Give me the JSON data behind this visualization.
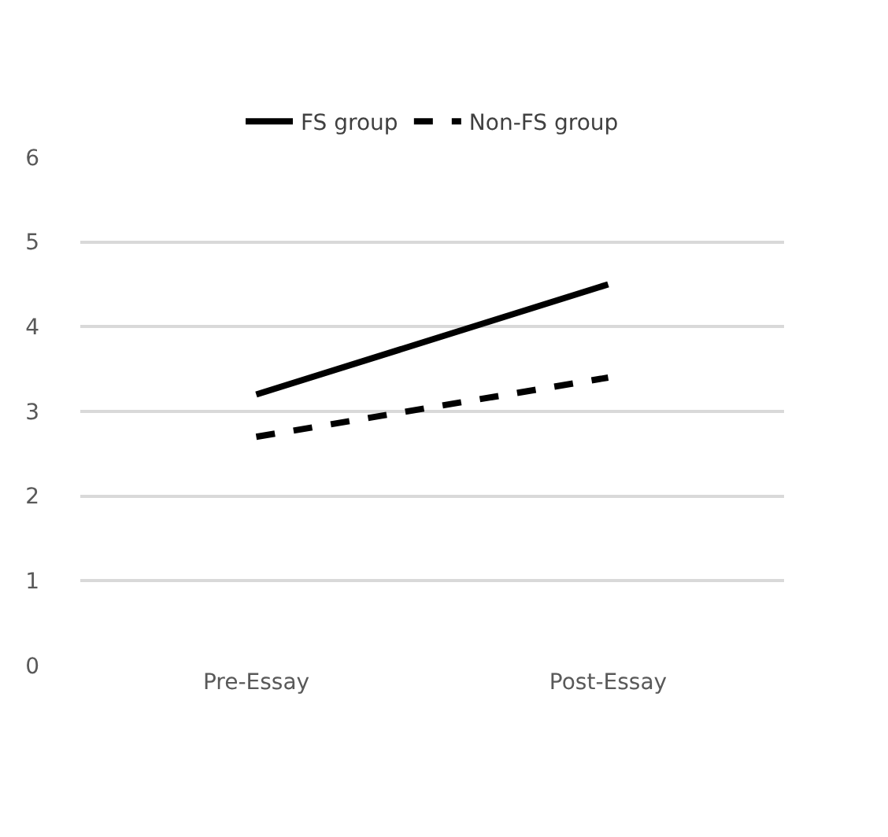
{
  "chart_data": {
    "type": "line",
    "categories": [
      "Pre-Essay",
      "Post-Essay"
    ],
    "series": [
      {
        "name": "FS group",
        "color": "#000000",
        "values": [
          3.2,
          4.5
        ],
        "line_style": "solid"
      },
      {
        "name": "Non-FS group",
        "color": "#000000",
        "values": [
          2.7,
          3.4
        ],
        "line_style": "dashed"
      }
    ],
    "ylim": [
      0,
      6
    ],
    "yticks": [
      0,
      1,
      2,
      3,
      4,
      5,
      6
    ],
    "grid": "y",
    "legend": "top",
    "marker": "none"
  }
}
